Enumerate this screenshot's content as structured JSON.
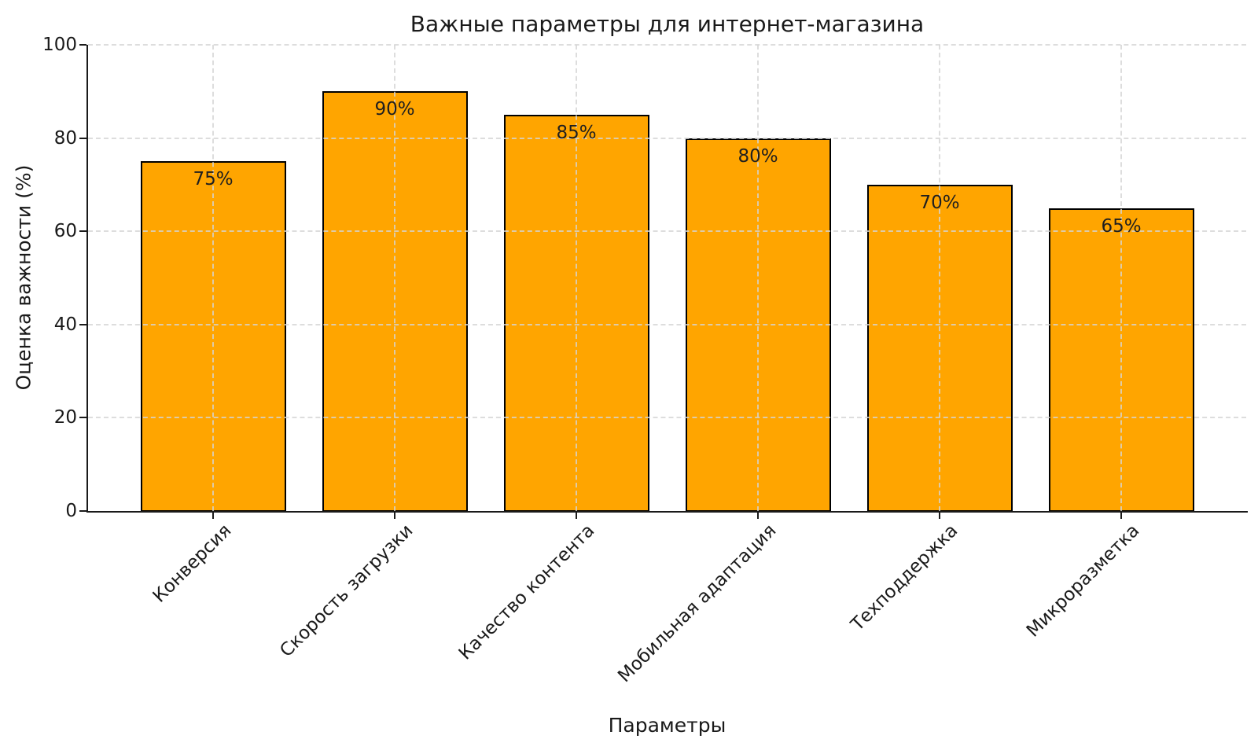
{
  "chart_data": {
    "type": "bar",
    "title": "Важные параметры для интернет-магазина",
    "xlabel": "Параметры",
    "ylabel": "Оценка важности (%)",
    "categories": [
      "Конверсия",
      "Скорость загрузки",
      "Качество контента",
      "Мобильная адаптация",
      "Техподдержка",
      "Микроразметка"
    ],
    "values": [
      75,
      90,
      85,
      80,
      70,
      65
    ],
    "value_labels": [
      "75%",
      "90%",
      "85%",
      "80%",
      "70%",
      "65%"
    ],
    "ylim": [
      0,
      100
    ],
    "yticks": [
      0,
      20,
      40,
      60,
      80,
      100
    ],
    "xtick_rotation_deg": 45,
    "grid": "dashed, horizontal and vertical, drawn over bars",
    "legend": "none",
    "colors": {
      "bar_fill": "#FFA500",
      "bar_edge": "#000000",
      "grid": "#D5D5D5",
      "text": "#1A1A1A",
      "background": "#FFFFFF"
    }
  }
}
